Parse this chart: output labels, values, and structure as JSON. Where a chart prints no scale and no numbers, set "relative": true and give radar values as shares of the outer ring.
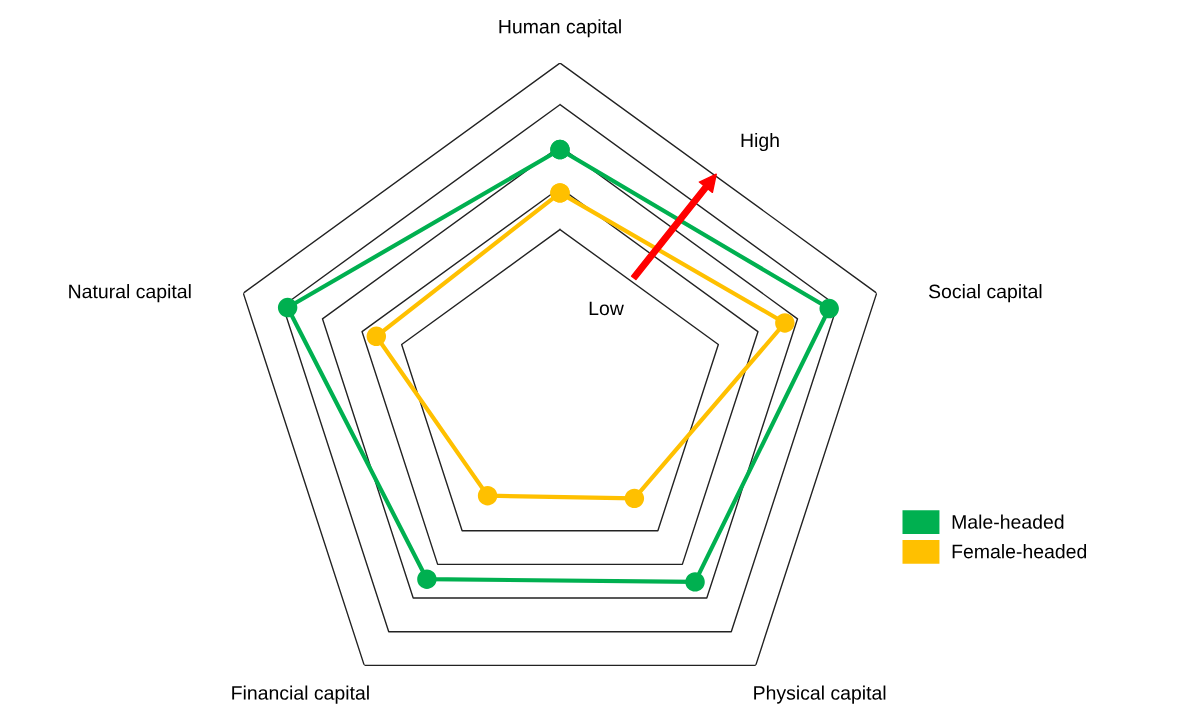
{
  "chart_data": {
    "type": "radar",
    "relative": true,
    "categories": [
      "Human capital",
      "Social capital",
      "Physical capital",
      "Financial capital",
      "Natural capital"
    ],
    "series": [
      {
        "name": "Male-headed",
        "color": "#00b050",
        "values": [
          0.74,
          0.85,
          0.69,
          0.68,
          0.86
        ]
      },
      {
        "name": "Female-headed",
        "color": "#ffc000",
        "values": [
          0.61,
          0.71,
          0.38,
          0.37,
          0.58
        ]
      }
    ],
    "annotations": [
      "Low",
      "High"
    ],
    "marker": "circle",
    "line_style": "solid",
    "legend": "bottom right",
    "grid": true
  }
}
